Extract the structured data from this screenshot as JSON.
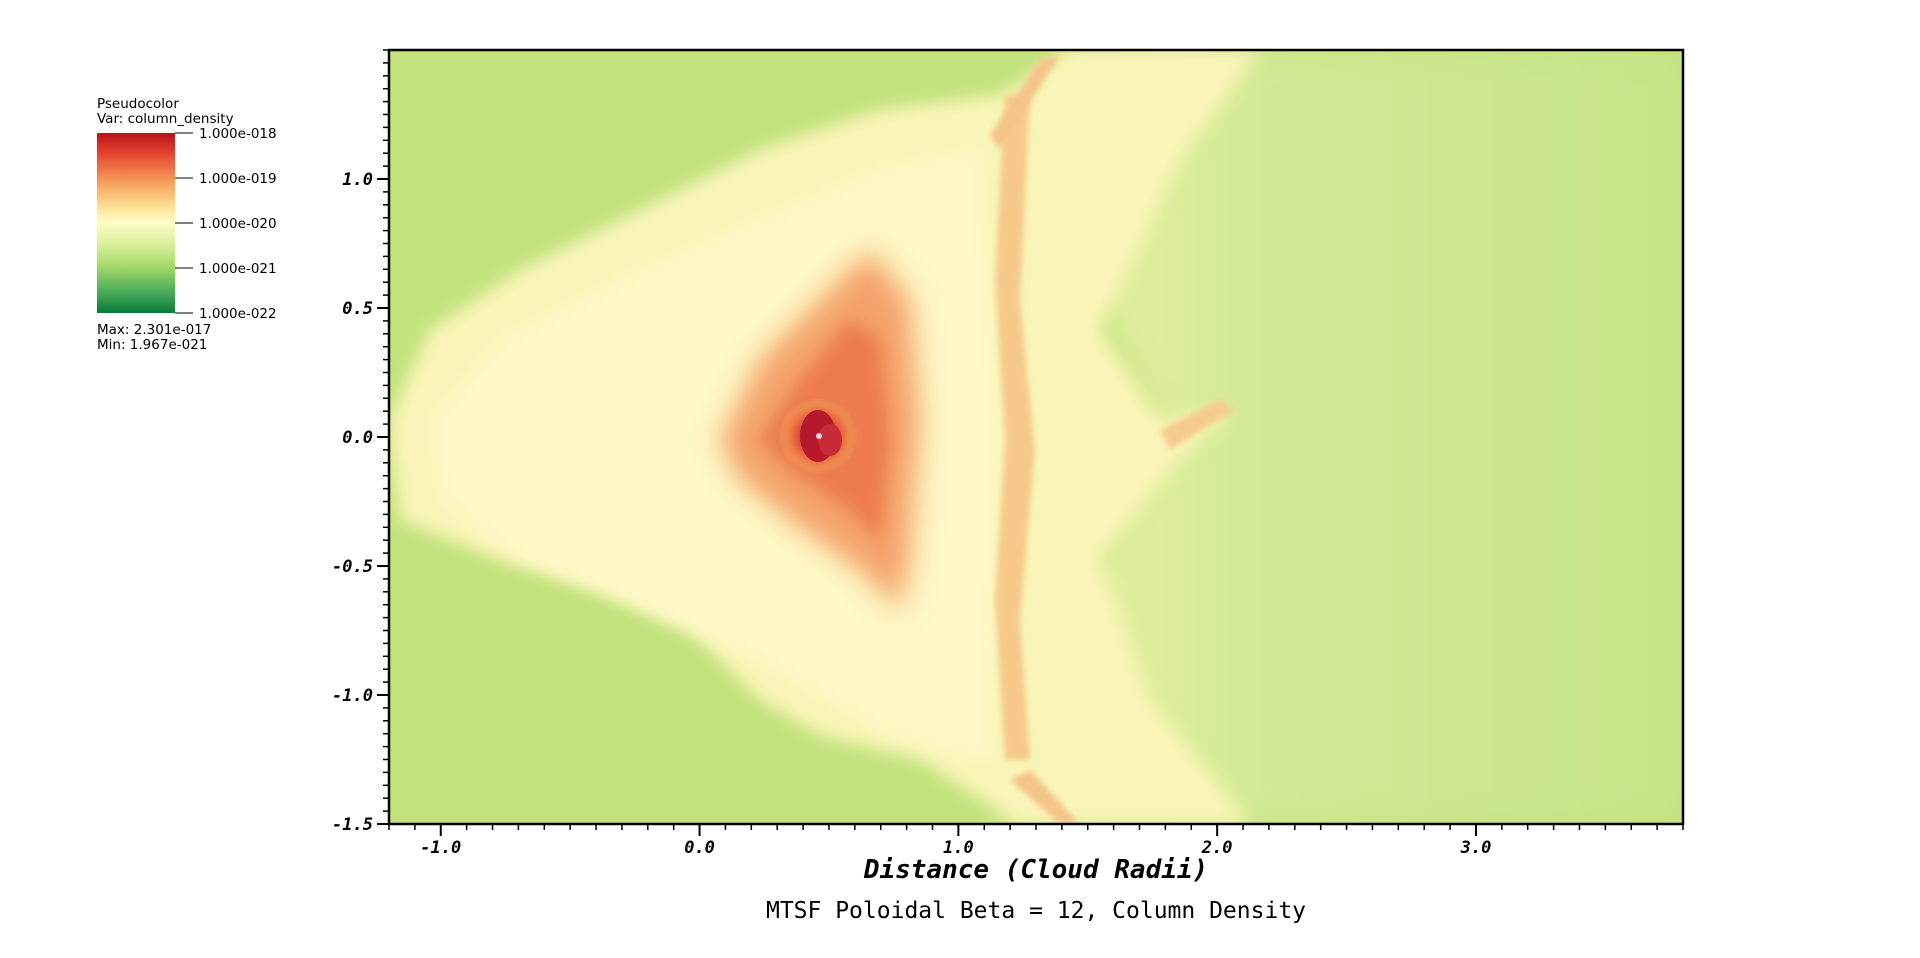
{
  "legend": {
    "plot_type": "Pseudocolor",
    "variable": "Var: column_density",
    "ticks": [
      "1.000e-018",
      "1.000e-019",
      "1.000e-020",
      "1.000e-021",
      "1.000e-022"
    ],
    "max_label": "Max:  2.301e-017",
    "min_label": "Min:  1.967e-021",
    "colors": [
      "#b5121c",
      "#e23d2b",
      "#f7a25c",
      "#fde59a",
      "#fefcc6",
      "#d8ee9a",
      "#a6d86a",
      "#4cad5a",
      "#0a7a3a"
    ]
  },
  "chart_data": {
    "type": "heatmap",
    "title": "MTSF Poloidal Beta = 12, Column Density",
    "xlabel": "Distance (Cloud Radii)",
    "ylabel": "",
    "xlim": [
      -1.2,
      3.8
    ],
    "ylim": [
      -1.5,
      1.5
    ],
    "x_ticks": [
      -1.0,
      0.0,
      1.0,
      2.0,
      3.0
    ],
    "x_tick_labels": [
      "-1.0",
      "0.0",
      "1.0",
      "2.0",
      "3.0"
    ],
    "y_ticks": [
      1.0,
      0.5,
      0.0,
      -0.5,
      -1.0,
      -1.5
    ],
    "y_tick_labels": [
      "1.0",
      "0.5",
      "0.0",
      "-0.5",
      "-1.0",
      "-1.5"
    ],
    "background_color": "#c3e27e",
    "peak_location": [
      0.47,
      0.0
    ]
  }
}
